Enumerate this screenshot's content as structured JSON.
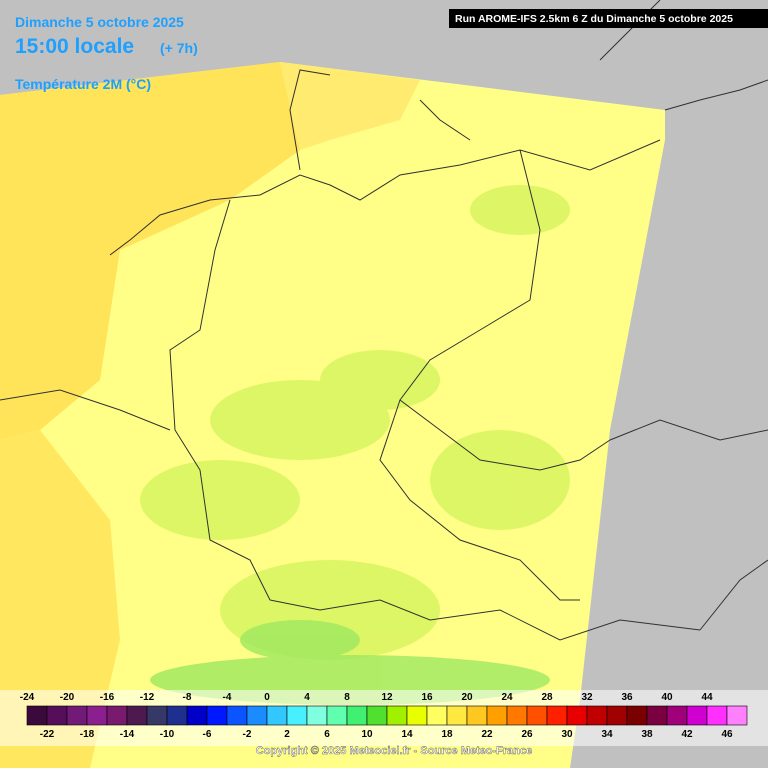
{
  "header": {
    "date": "Dimanche 5 octobre 2025",
    "time": "15:00 locale",
    "offset": "(+ 7h)",
    "parameter": "Température 2M (°C)",
    "run": "Run AROME-IFS 2.5km 6 Z du Dimanche 5 octobre 2025"
  },
  "legend": {
    "ticks": [
      -24,
      -22,
      -20,
      -18,
      -16,
      -14,
      -12,
      -10,
      -8,
      -6,
      -4,
      -2,
      0,
      2,
      4,
      6,
      8,
      10,
      12,
      14,
      16,
      18,
      20,
      22,
      24,
      26,
      28,
      30,
      32,
      34,
      36,
      38,
      40,
      42,
      44,
      46
    ],
    "colors": [
      "#3b0a3d",
      "#550f5a",
      "#721a78",
      "#8c1f8f",
      "#7a1a6e",
      "#4d1a4f",
      "#363866",
      "#1e2f8f",
      "#0000c8",
      "#0018ff",
      "#0a55ff",
      "#1a8cff",
      "#32c8ff",
      "#48f0ff",
      "#80ffe0",
      "#60ffb0",
      "#40f070",
      "#50e030",
      "#a0f000",
      "#e8ff00",
      "#ffff60",
      "#ffe840",
      "#ffc820",
      "#ffa000",
      "#ff7800",
      "#ff5000",
      "#ff2000",
      "#e80000",
      "#c00000",
      "#a00000",
      "#7a0000",
      "#7a0040",
      "#a0007a",
      "#d000d0",
      "#ff30ff",
      "#ff80ff"
    ]
  },
  "footer": {
    "copyright": "Copyright © 2025 Meteociel.fr - Source Meteo-France"
  }
}
